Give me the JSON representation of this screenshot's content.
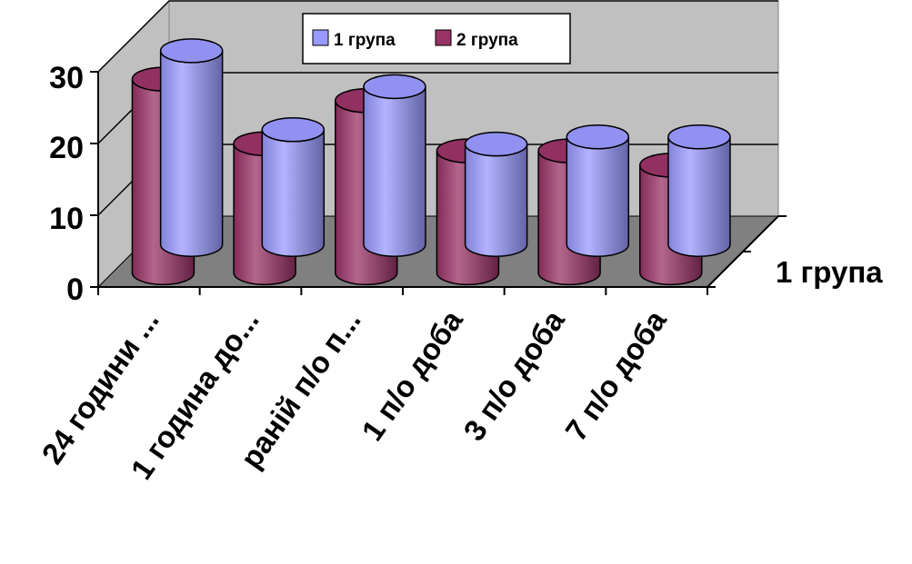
{
  "chart_data": {
    "type": "bar",
    "style": "3d-cylinder",
    "categories": [
      "24 години ...",
      "1 година до...",
      "раній п/о п...",
      "1 п/о доба",
      "3 п/о доба",
      "7 п/о доба"
    ],
    "series": [
      {
        "name": "1 група",
        "values": [
          27,
          16,
          22,
          14,
          15,
          15
        ],
        "color": "#9999ff"
      },
      {
        "name": "2 група",
        "values": [
          27,
          18,
          24,
          17,
          17,
          15
        ],
        "color": "#993366"
      }
    ],
    "y_ticks": [
      "0",
      "10",
      "20",
      "30"
    ],
    "ylim": [
      0,
      30
    ],
    "depth_axis_label": "1 група",
    "legend_position": "top",
    "grid": true,
    "colors": {
      "back_wall": "#c0c0c0",
      "floor": "#808080",
      "gridline": "#000000"
    }
  }
}
